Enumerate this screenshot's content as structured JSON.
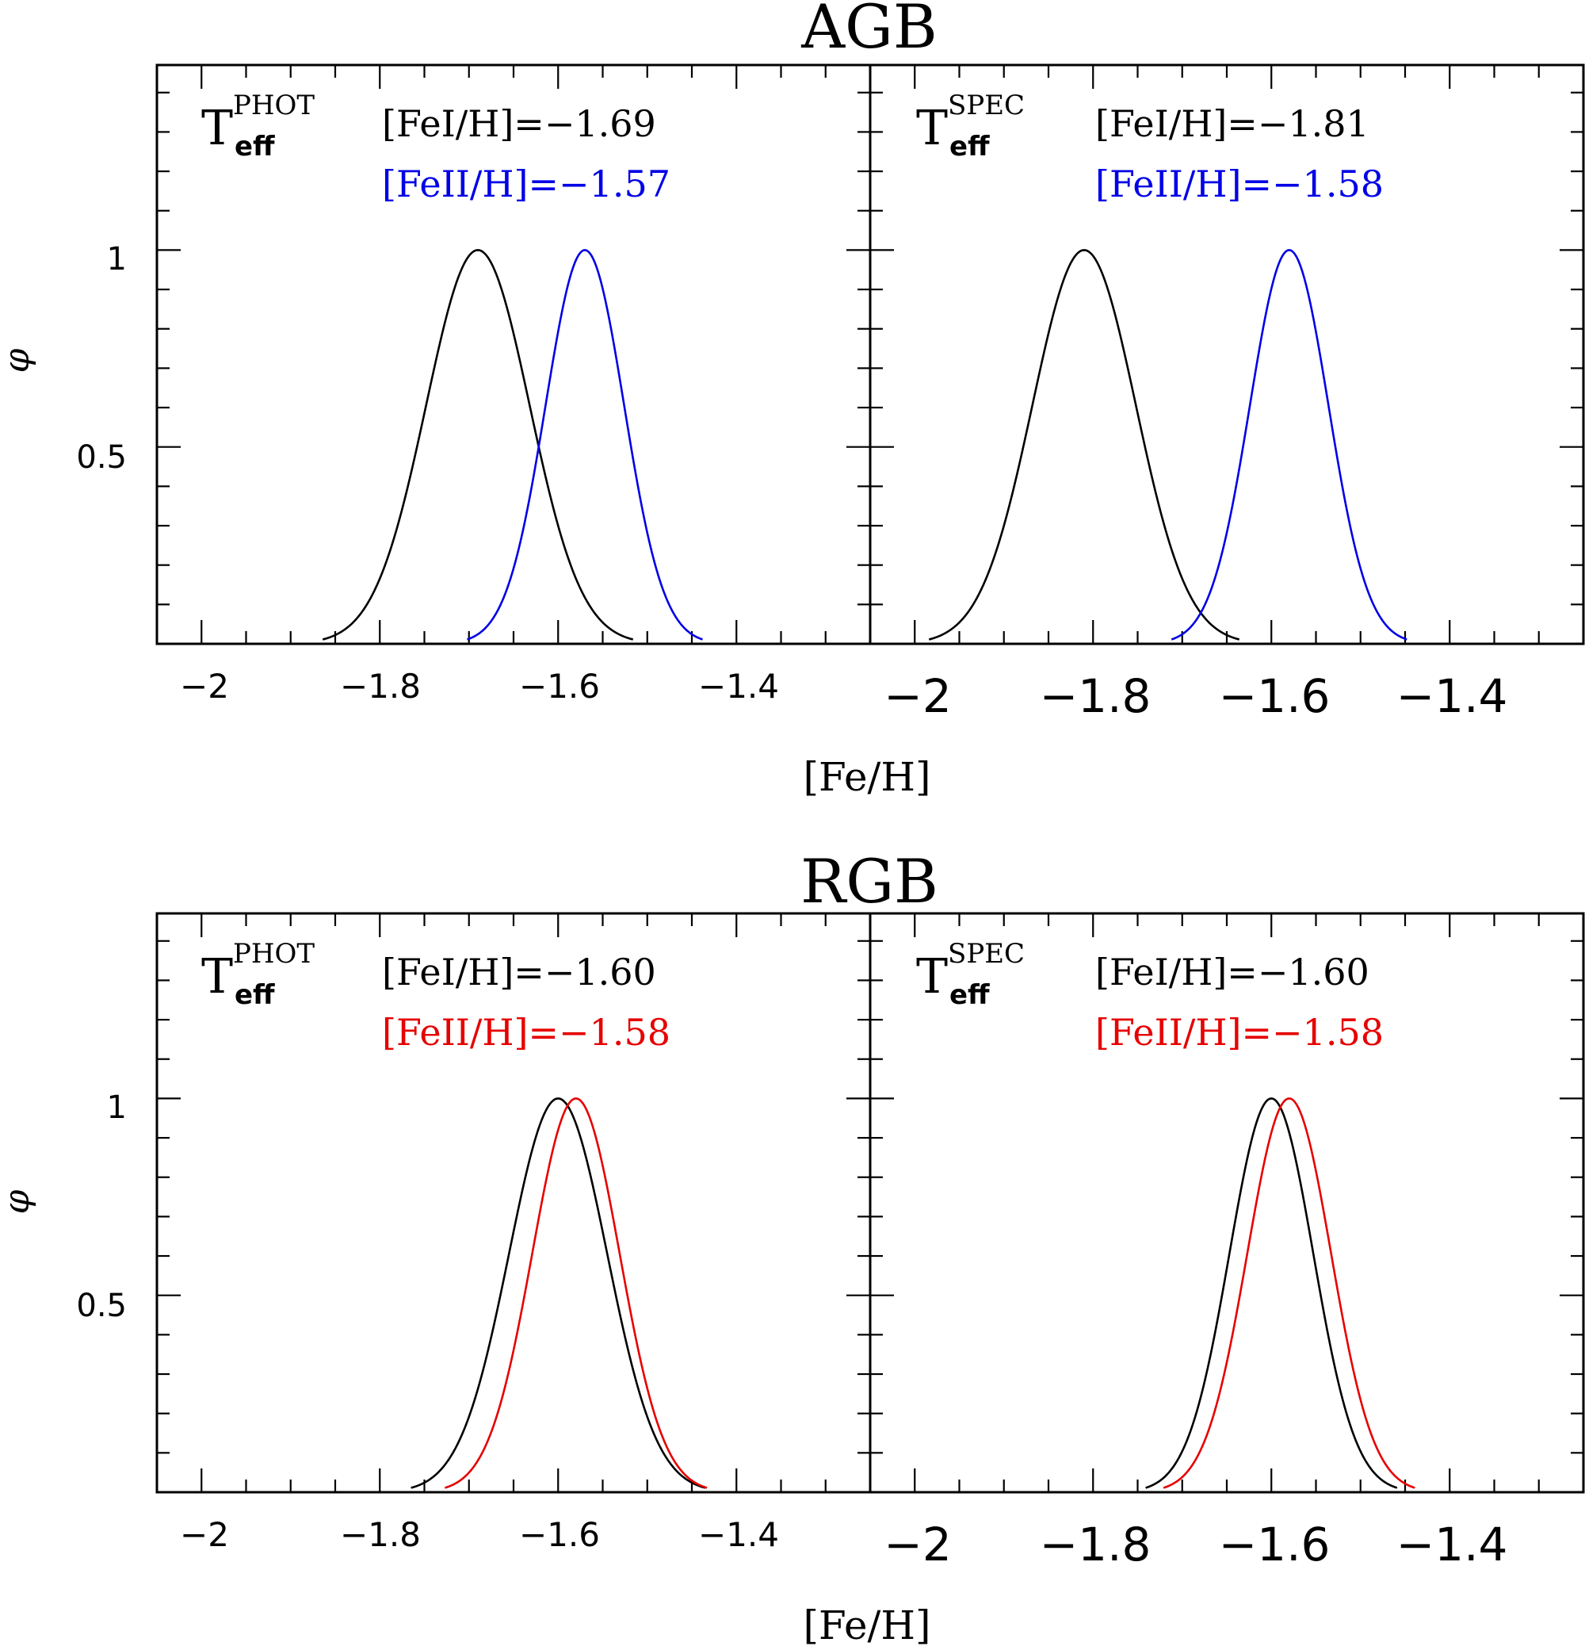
{
  "figure": {
    "sections": [
      {
        "title": "AGB",
        "xlabel": "[Fe/H]",
        "ylabel": "φ",
        "ytick_labels": [
          "1",
          "0.5"
        ],
        "panels": [
          {
            "teff_main": "T",
            "teff_sup": "PHOT",
            "teff_sub": "eff",
            "fe1": "[FeI/H]=−1.69",
            "fe2": "[FeII/H]=−1.57",
            "xtick_labels": [
              "−2",
              "−1.8",
              "−1.6",
              "−1.4"
            ]
          },
          {
            "teff_main": "T",
            "teff_sup": "SPEC",
            "teff_sub": "eff",
            "fe1": "[FeI/H]=−1.81",
            "fe2": "[FeII/H]=−1.58",
            "xtick_labels": [
              "−2",
              "−1.8",
              "−1.6",
              "−1.4"
            ]
          }
        ]
      },
      {
        "title": "RGB",
        "xlabel": "[Fe/H]",
        "ylabel": "φ",
        "ytick_labels": [
          "1",
          "0.5"
        ],
        "panels": [
          {
            "teff_main": "T",
            "teff_sup": "PHOT",
            "teff_sub": "eff",
            "fe1": "[FeI/H]=−1.60",
            "fe2": "[FeII/H]=−1.58",
            "xtick_labels": [
              "−2",
              "−1.8",
              "−1.6",
              "−1.4"
            ]
          },
          {
            "teff_main": "T",
            "teff_sup": "SPEC",
            "teff_sub": "eff",
            "fe1": "[FeI/H]=−1.60",
            "fe2": "[FeII/H]=−1.58",
            "xtick_labels": [
              "−2",
              "−1.8",
              "−1.6",
              "−1.4"
            ]
          }
        ]
      }
    ]
  },
  "colors": {
    "black": "#000000",
    "blue": "#0000e6",
    "red": "#e60000"
  },
  "chart_data": [
    {
      "type": "line",
      "title": "AGB — T_eff^PHOT",
      "xlabel": "[Fe/H]",
      "ylabel": "φ",
      "xlim": [
        -2.05,
        -1.25
      ],
      "ylim": [
        0,
        1.47
      ],
      "xticks": [
        -2,
        -1.8,
        -1.6,
        -1.4
      ],
      "yticks": [
        0.5,
        1
      ],
      "series": [
        {
          "name": "[FeI/H]=−1.69",
          "color": "#000000",
          "mean": -1.69,
          "sigma": 0.058
        },
        {
          "name": "[FeII/H]=−1.57",
          "color": "#0000e6",
          "mean": -1.57,
          "sigma": 0.044
        }
      ]
    },
    {
      "type": "line",
      "title": "AGB — T_eff^SPEC",
      "xlabel": "[Fe/H]",
      "ylabel": "φ",
      "xlim": [
        -2.05,
        -1.25
      ],
      "ylim": [
        0,
        1.47
      ],
      "xticks": [
        -2,
        -1.8,
        -1.6,
        -1.4
      ],
      "yticks": [
        0.5,
        1
      ],
      "series": [
        {
          "name": "[FeI/H]=−1.81",
          "color": "#000000",
          "mean": -1.81,
          "sigma": 0.058
        },
        {
          "name": "[FeII/H]=−1.58",
          "color": "#0000e6",
          "mean": -1.58,
          "sigma": 0.044
        }
      ]
    },
    {
      "type": "line",
      "title": "RGB — T_eff^PHOT",
      "xlabel": "[Fe/H]",
      "ylabel": "φ",
      "xlim": [
        -2.05,
        -1.25
      ],
      "ylim": [
        0,
        1.47
      ],
      "xticks": [
        -2,
        -1.8,
        -1.6,
        -1.4
      ],
      "yticks": [
        0.5,
        1
      ],
      "series": [
        {
          "name": "[FeI/H]=−1.60",
          "color": "#000000",
          "mean": -1.6,
          "sigma": 0.055
        },
        {
          "name": "[FeII/H]=−1.58",
          "color": "#e60000",
          "mean": -1.58,
          "sigma": 0.049
        }
      ]
    },
    {
      "type": "line",
      "title": "RGB — T_eff^SPEC",
      "xlabel": "[Fe/H]",
      "ylabel": "φ",
      "xlim": [
        -2.05,
        -1.25
      ],
      "ylim": [
        0,
        1.47
      ],
      "xticks": [
        -2,
        -1.8,
        -1.6,
        -1.4
      ],
      "yticks": [
        0.5,
        1
      ],
      "series": [
        {
          "name": "[FeI/H]=−1.60",
          "color": "#000000",
          "mean": -1.6,
          "sigma": 0.047
        },
        {
          "name": "[FeII/H]=−1.58",
          "color": "#e60000",
          "mean": -1.58,
          "sigma": 0.047
        }
      ]
    }
  ]
}
